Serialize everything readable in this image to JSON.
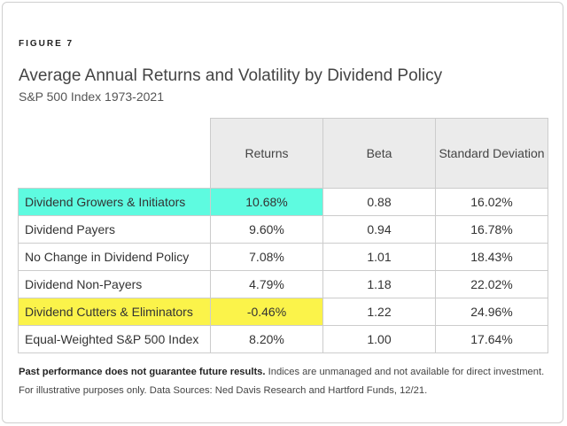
{
  "figure_label": "FIGURE 7",
  "chart_data": {
    "type": "table",
    "title": "Average Annual Returns and Volatility by Dividend Policy",
    "subtitle": "S&P 500 Index 1973-2021",
    "columns": [
      "Returns",
      "Beta",
      "Standard Deviation"
    ],
    "rows": [
      {
        "category": "Dividend Growers & Initiators",
        "returns": "10.68%",
        "beta": "0.88",
        "std_dev": "16.02%",
        "highlight": "cyan"
      },
      {
        "category": "Dividend Payers",
        "returns": "9.60%",
        "beta": "0.94",
        "std_dev": "16.78%",
        "highlight": ""
      },
      {
        "category": "No Change in Dividend Policy",
        "returns": "7.08%",
        "beta": "1.01",
        "std_dev": "18.43%",
        "highlight": ""
      },
      {
        "category": "Dividend Non-Payers",
        "returns": "4.79%",
        "beta": "1.18",
        "std_dev": "22.02%",
        "highlight": ""
      },
      {
        "category": "Dividend Cutters & Eliminators",
        "returns": "-0.46%",
        "beta": "1.22",
        "std_dev": "24.96%",
        "highlight": "yellow"
      },
      {
        "category": "Equal-Weighted S&P 500 Index",
        "returns": "8.20%",
        "beta": "1.00",
        "std_dev": "17.64%",
        "highlight": ""
      }
    ]
  },
  "footnote": {
    "bold": "Past performance does not guarantee future results.",
    "text": " Indices are unmanaged and not available for direct investment. For illustrative purposes only. Data Sources: Ned Davis Research and Hartford Funds, 12/21."
  },
  "colors": {
    "highlight_cyan": "#5efbe0",
    "highlight_yellow": "#fbf34a",
    "header_bg": "#ebebeb"
  }
}
